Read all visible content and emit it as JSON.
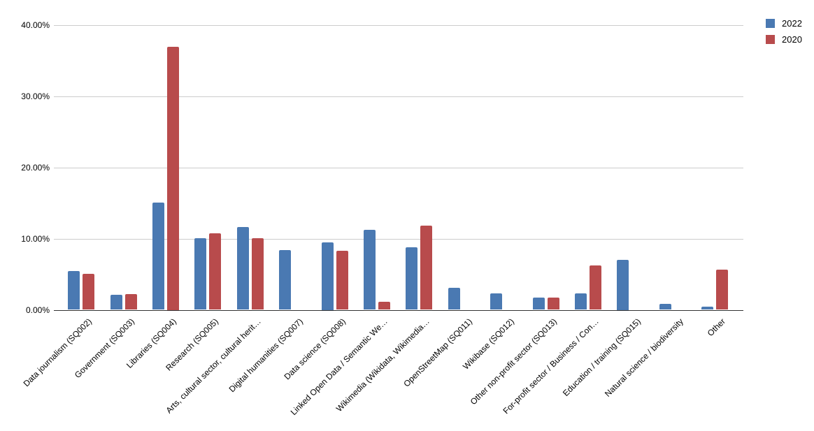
{
  "chart_data": {
    "type": "bar",
    "title": "",
    "xlabel": "",
    "ylabel": "",
    "grid": "horizontal",
    "legend_position": "top-right",
    "ylim": [
      0,
      40
    ],
    "y_tick_values": [
      0,
      10,
      20,
      30,
      40
    ],
    "y_tick_labels": [
      "0.00%",
      "10.00%",
      "20.00%",
      "30.00%",
      "40.00%"
    ],
    "categories": [
      "Data journalism (SQ002)",
      "Government (SQ003)",
      "Libraries (SQ004)",
      "Research (SQ005)",
      "Arts, cultural sector, cultural herit…",
      "Digital humanities (SQ007)",
      "Data science (SQ008)",
      "Linked Open Data / Semantic We…",
      "Wikimedia (Wikidata, Wikimedia…",
      "OpenStreetMap (SQ011)",
      "Wikibase (SQ012)",
      "Other non-profit sector (SQ013)",
      "For-profit sector / Business / Con…",
      "Education / training (SQ015)",
      "Natural science / biodiversity",
      "Other"
    ],
    "series": [
      {
        "name": "2022",
        "color": "#4a79b2",
        "values": [
          5.4,
          2.1,
          15.1,
          10.1,
          11.6,
          8.4,
          9.5,
          11.2,
          8.8,
          3.1,
          2.3,
          1.7,
          2.3,
          7.0,
          0.8,
          0.4
        ]
      },
      {
        "name": "2020",
        "color": "#b84b4c",
        "values": [
          5.1,
          2.2,
          37.0,
          10.7,
          10.1,
          0,
          8.3,
          1.1,
          11.8,
          0,
          0,
          1.7,
          6.2,
          0,
          0,
          5.6
        ]
      }
    ],
    "colors": {
      "grid": "#cccccc",
      "axis": "#333333",
      "text": "#000000",
      "background": "#ffffff"
    }
  }
}
